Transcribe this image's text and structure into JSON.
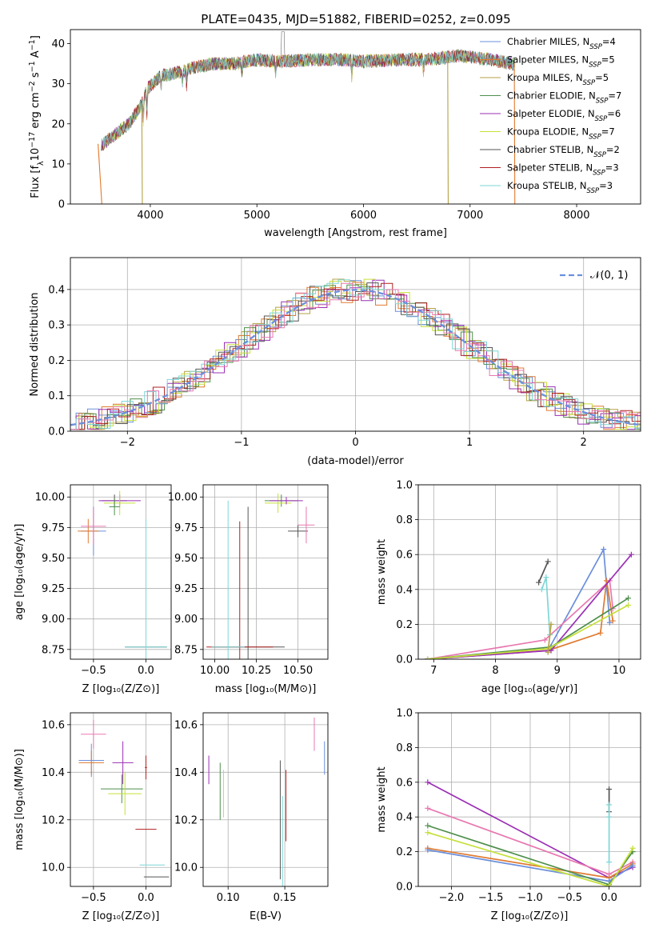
{
  "figure": {
    "title": "PLATE=0435, MJD=51882, FIBERID=0252, z=0.095"
  },
  "chart_data": [
    {
      "id": "spectrum",
      "type": "line",
      "xlabel": "wavelength [Angstrom, rest frame]",
      "ylabel_parts": [
        "Flux [f",
        "λ",
        "10",
        "−17",
        " erg cm",
        "−2",
        " s",
        "−1",
        " A",
        "−1",
        "]"
      ],
      "xlim": [
        3250,
        8600
      ],
      "ylim": [
        0,
        43.5
      ],
      "xticks": [
        4000,
        5000,
        6000,
        7000,
        8000
      ],
      "yticks": [
        0,
        10,
        20,
        30,
        40
      ],
      "grid": false,
      "legend_placement": "upper right",
      "continuum": {
        "x": [
          3560,
          3700,
          3800,
          3900,
          3980,
          4100,
          4300,
          4400,
          4600,
          4800,
          5000,
          5200,
          5500,
          5800,
          6000,
          6300,
          6600,
          6900,
          7200,
          7400
        ],
        "y": [
          15,
          18,
          20,
          24,
          29,
          32,
          33,
          34,
          35,
          35,
          36,
          35.5,
          36,
          36,
          35.5,
          36,
          36,
          37,
          36,
          35
        ]
      },
      "series": [
        {
          "name": "Chabrier MILES",
          "nssp": "4",
          "color": "#6a8fdc"
        },
        {
          "name": "Salpeter MILES",
          "nssp": "5",
          "color": "#e07a30"
        },
        {
          "name": "Kroupa MILES",
          "nssp": "5",
          "color": "#b5a246"
        },
        {
          "name": "Chabrier ELODIE",
          "nssp": "7",
          "color": "#4e8f4a"
        },
        {
          "name": "Salpeter ELODIE",
          "nssp": "6",
          "color": "#9b2fb5"
        },
        {
          "name": "Kroupa ELODIE",
          "nssp": "7",
          "color": "#c6e03a"
        },
        {
          "name": "Chabrier STELIB",
          "nssp": "2",
          "color": "#555555"
        },
        {
          "name": "Salpeter STELIB",
          "nssp": "3",
          "color": "#b02020"
        },
        {
          "name": "Kroupa STELIB",
          "nssp": "3",
          "color": "#7fd6d6"
        }
      ]
    },
    {
      "id": "residuals",
      "type": "line",
      "xlabel": "(data-model)/error",
      "ylabel": "Normed distribution",
      "xlim": [
        -2.5,
        2.5
      ],
      "ylim": [
        0,
        0.49
      ],
      "xticks": [
        -2,
        -1,
        0,
        1,
        2
      ],
      "yticks": [
        0.0,
        0.1,
        0.2,
        0.3,
        0.4
      ],
      "grid": true,
      "legend_label": "𝒩(0, 1)",
      "legend_placement": "upper right"
    },
    {
      "id": "age_vs_Z",
      "type": "scatter",
      "xlabel": "Z [log₁₀(Z/Z⊙)]",
      "ylabel": "age  [log₁₀(age/yr)]",
      "xlim": [
        -0.72,
        0.24
      ],
      "ylim": [
        8.67,
        10.1
      ],
      "xticks": [
        -0.5,
        0.0
      ],
      "yticks": [
        8.75,
        9.0,
        9.25,
        9.5,
        9.75,
        10.0
      ],
      "grid": true,
      "points": [
        {
          "x": -0.5,
          "y": 9.72,
          "xe": 0.12,
          "ye": 0.2,
          "c": "#6a8fdc"
        },
        {
          "x": -0.55,
          "y": 9.72,
          "xe": 0.1,
          "ye": 0.1,
          "c": "#e07a30"
        },
        {
          "x": -0.5,
          "y": 9.76,
          "xe": 0.12,
          "ye": 0.15,
          "c": "#e878b0"
        },
        {
          "x": -0.3,
          "y": 9.97,
          "xe": 0.12,
          "ye": 0.05,
          "c": "#555555"
        },
        {
          "x": -0.25,
          "y": 9.97,
          "xe": 0.2,
          "ye": 0.05,
          "c": "#9b2fb5"
        },
        {
          "x": -0.25,
          "y": 9.95,
          "xe": 0.15,
          "ye": 0.1,
          "c": "#c6e03a"
        },
        {
          "x": -0.3,
          "y": 9.92,
          "xe": 0.05,
          "ye": 0.07,
          "c": "#4e8f4a"
        },
        {
          "x": 0.0,
          "y": 8.77,
          "xe": 0.2,
          "ye": 0.02,
          "c": "#555555"
        },
        {
          "x": 0.0,
          "y": 8.77,
          "xe": 0.2,
          "ye": 1.05,
          "c": "#7fd6d6"
        }
      ]
    },
    {
      "id": "age_vs_mass",
      "type": "scatter",
      "xlabel": "mass [log₁₀(M/M⊙)]",
      "xlim": [
        9.93,
        10.68
      ],
      "ylim": [
        8.67,
        10.1
      ],
      "xticks": [
        10.0,
        10.25,
        10.5
      ],
      "yticks": [
        8.75,
        9.0,
        9.25,
        9.5,
        9.75,
        10.0
      ],
      "grid": true,
      "points": [
        {
          "x": 10.4,
          "y": 9.97,
          "xe": 0.1,
          "ye": 0.05,
          "c": "#4e8f4a"
        },
        {
          "x": 10.38,
          "y": 9.95,
          "xe": 0.08,
          "ye": 0.08,
          "c": "#c6e03a"
        },
        {
          "x": 10.43,
          "y": 9.97,
          "xe": 0.1,
          "ye": 0.03,
          "c": "#9b2fb5"
        },
        {
          "x": 10.5,
          "y": 9.72,
          "xe": 0.06,
          "ye": 0.05,
          "c": "#555555"
        },
        {
          "x": 10.55,
          "y": 9.77,
          "xe": 0.05,
          "ye": 0.15,
          "c": "#e878b0"
        },
        {
          "x": 10.2,
          "y": 8.77,
          "xe": 0.22,
          "ye": 1.15,
          "c": "#555555"
        },
        {
          "x": 10.15,
          "y": 8.77,
          "xe": 0.2,
          "ye": 1.03,
          "c": "#b02020"
        },
        {
          "x": 10.08,
          "y": 8.77,
          "xe": 0.1,
          "ye": 1.2,
          "c": "#7fd6d6"
        }
      ]
    },
    {
      "id": "weight_vs_age",
      "type": "line",
      "xlabel": "age  [log₁₀(age/yr)]",
      "ylabel": "mass weight",
      "xlim": [
        6.75,
        10.35
      ],
      "ylim": [
        0,
        1.0
      ],
      "xticks": [
        7,
        8,
        9,
        10
      ],
      "yticks": [
        0.0,
        0.2,
        0.4,
        0.6,
        0.8,
        1.0
      ],
      "grid": true,
      "series": [
        {
          "color": "#6a8fdc",
          "x": [
            6.9,
            8.85,
            9.75,
            9.85
          ],
          "y": [
            0.0,
            0.05,
            0.63,
            0.21
          ]
        },
        {
          "color": "#e07a30",
          "x": [
            6.9,
            8.85,
            9.7,
            9.8,
            9.9
          ],
          "y": [
            0.0,
            0.05,
            0.15,
            0.45,
            0.22
          ]
        },
        {
          "color": "#e878b0",
          "x": [
            6.9,
            8.8,
            9.85,
            9.9
          ],
          "y": [
            0.0,
            0.11,
            0.45,
            0.29
          ]
        },
        {
          "color": "#9b2fb5",
          "x": [
            6.9,
            8.9,
            10.2
          ],
          "y": [
            0.0,
            0.05,
            0.6
          ]
        },
        {
          "color": "#4e8f4a",
          "x": [
            6.9,
            8.9,
            10.15
          ],
          "y": [
            0.0,
            0.07,
            0.35
          ]
        },
        {
          "color": "#c6e03a",
          "x": [
            6.9,
            8.85,
            10.15
          ],
          "y": [
            0.0,
            0.06,
            0.31
          ]
        },
        {
          "color": "#555555",
          "x": [
            8.7,
            8.85
          ],
          "y": [
            0.44,
            0.56
          ]
        },
        {
          "color": "#7fd6d6",
          "x": [
            8.75,
            8.82,
            8.88
          ],
          "y": [
            0.4,
            0.47,
            0.14
          ]
        },
        {
          "color": "#b5a246",
          "x": [
            8.85,
            8.9
          ],
          "y": [
            0.04,
            0.2
          ]
        }
      ]
    },
    {
      "id": "mass_vs_Z",
      "type": "scatter",
      "xlabel": "Z [log₁₀(Z/Z⊙)]",
      "ylabel": "mass [log₁₀(M/M⊙)]",
      "xlim": [
        -0.72,
        0.24
      ],
      "ylim": [
        9.92,
        10.65
      ],
      "xticks": [
        -0.5,
        0.0
      ],
      "yticks": [
        10.0,
        10.2,
        10.4,
        10.6
      ],
      "grid": true,
      "points": [
        {
          "x": -0.5,
          "y": 10.56,
          "xe": 0.12,
          "ye": 0.06,
          "c": "#e878b0"
        },
        {
          "x": -0.52,
          "y": 10.45,
          "xe": 0.12,
          "ye": 0.07,
          "c": "#6a8fdc"
        },
        {
          "x": -0.52,
          "y": 10.44,
          "xe": 0.12,
          "ye": 0.05,
          "c": "#e07a30"
        },
        {
          "x": -0.22,
          "y": 10.44,
          "xe": 0.1,
          "ye": 0.09,
          "c": "#9b2fb5"
        },
        {
          "x": -0.23,
          "y": 10.33,
          "xe": 0.2,
          "ye": 0.06,
          "c": "#4e8f4a"
        },
        {
          "x": -0.2,
          "y": 10.31,
          "xe": 0.16,
          "ye": 0.09,
          "c": "#c6e03a"
        },
        {
          "x": 0.0,
          "y": 10.42,
          "xe": 0.01,
          "ye": 0.05,
          "c": "#b02020"
        },
        {
          "x": 0.0,
          "y": 10.16,
          "xe": 0.1,
          "ye": 0.0,
          "c": "#b02020"
        },
        {
          "x": 0.06,
          "y": 10.01,
          "xe": 0.12,
          "ye": 0.0,
          "c": "#7fd6d6"
        },
        {
          "x": 0.1,
          "y": 9.96,
          "xe": 0.12,
          "ye": 0.0,
          "c": "#555555"
        }
      ]
    },
    {
      "id": "mass_vs_ebv",
      "type": "scatter",
      "xlabel": "E(B-V)",
      "xlim": [
        0.078,
        0.188
      ],
      "ylim": [
        9.92,
        10.65
      ],
      "xticks": [
        0.1,
        0.15
      ],
      "yticks": [
        10.0,
        10.2,
        10.4,
        10.6
      ],
      "grid": true,
      "points": [
        {
          "x": 0.083,
          "y": 10.41,
          "xe": 0,
          "ye": 0.06,
          "c": "#9b2fb5"
        },
        {
          "x": 0.093,
          "y": 10.32,
          "xe": 0,
          "ye": 0.12,
          "c": "#4e8f4a"
        },
        {
          "x": 0.096,
          "y": 10.31,
          "xe": 0,
          "ye": 0.1,
          "c": "#c6e03a"
        },
        {
          "x": 0.146,
          "y": 10.2,
          "xe": 0,
          "ye": 0.25,
          "c": "#555555"
        },
        {
          "x": 0.148,
          "y": 10.1,
          "xe": 0,
          "ye": 0.2,
          "c": "#7fd6d6"
        },
        {
          "x": 0.151,
          "y": 10.26,
          "xe": 0,
          "ye": 0.15,
          "c": "#b02020"
        },
        {
          "x": 0.176,
          "y": 10.56,
          "xe": 0,
          "ye": 0.07,
          "c": "#e878b0"
        },
        {
          "x": 0.185,
          "y": 10.46,
          "xe": 0,
          "ye": 0.07,
          "c": "#6a8fdc"
        }
      ]
    },
    {
      "id": "weight_vs_Z",
      "type": "line",
      "xlabel": "Z [log₁₀(Z/Z⊙)]",
      "ylabel": "mass weight",
      "xlim": [
        -2.42,
        0.4
      ],
      "ylim": [
        0,
        1.0
      ],
      "xticks": [
        -2.0,
        -1.5,
        -1.0,
        -0.5,
        0.0
      ],
      "yticks": [
        0.0,
        0.2,
        0.4,
        0.6,
        0.8,
        1.0
      ],
      "grid": true,
      "series": [
        {
          "color": "#9b2fb5",
          "x": [
            -2.3,
            0.0,
            0.3
          ],
          "y": [
            0.6,
            0.05,
            0.11
          ]
        },
        {
          "color": "#e878b0",
          "x": [
            -2.3,
            0.0,
            0.3
          ],
          "y": [
            0.45,
            0.07,
            0.14
          ]
        },
        {
          "color": "#e07a30",
          "x": [
            -2.3,
            0.0,
            0.3
          ],
          "y": [
            0.22,
            0.05,
            0.13
          ]
        },
        {
          "color": "#6a8fdc",
          "x": [
            -2.3,
            0.0,
            0.3
          ],
          "y": [
            0.21,
            0.03,
            0.12
          ]
        },
        {
          "color": "#4e8f4a",
          "x": [
            -2.3,
            0.0,
            0.3
          ],
          "y": [
            0.35,
            0.01,
            0.2
          ]
        },
        {
          "color": "#c6e03a",
          "x": [
            -2.3,
            0.0,
            0.3
          ],
          "y": [
            0.31,
            0.0,
            0.22
          ]
        },
        {
          "color": "#555555",
          "x": [
            0.0,
            0.0
          ],
          "y": [
            0.56,
            0.43
          ]
        },
        {
          "color": "#7fd6d6",
          "x": [
            0.0,
            0.0,
            0.0
          ],
          "y": [
            0.47,
            0.4,
            0.14
          ]
        }
      ]
    }
  ]
}
